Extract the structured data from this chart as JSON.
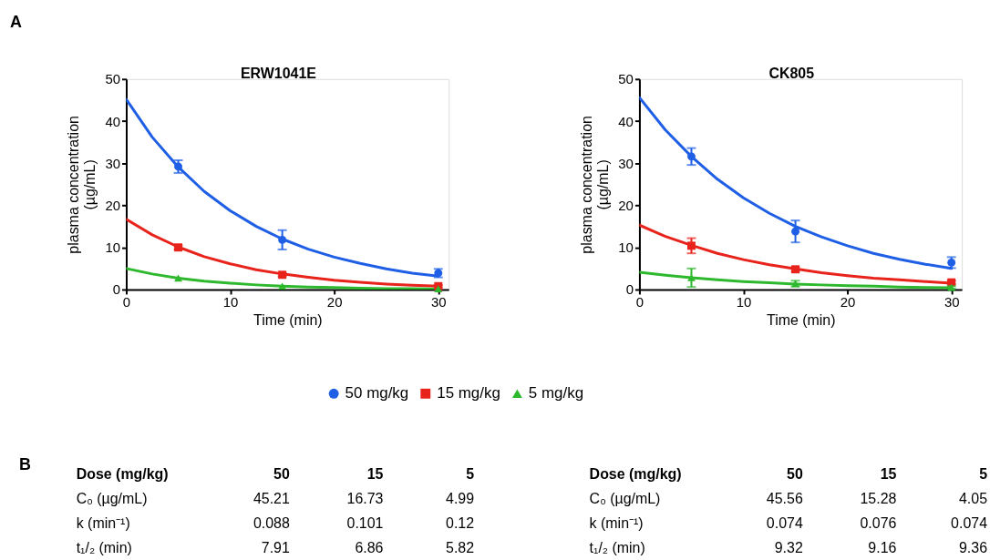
{
  "chart_data": [
    {
      "type": "scatter",
      "title": "ERW1041E",
      "xlabel": "Time (min)",
      "ylabel": "plasma concentration\n(µg/mL)",
      "xlim": [
        0,
        31
      ],
      "xticks": [
        0,
        10,
        20,
        30
      ],
      "ylim": [
        0,
        50
      ],
      "yticks": [
        0,
        10,
        20,
        30,
        40,
        50
      ],
      "grid": false,
      "legend": "bottom",
      "annotations": [
        "A",
        "B",
        "Dose (mg/kg)",
        "50",
        "15",
        "5",
        "C₀ (µg/mL)",
        "45.21",
        "16.73",
        "4.99",
        "k (min⁻¹)",
        "0.088",
        "0.101",
        "0.12",
        "t₁/₂ (min)",
        "7.91",
        "6.86",
        "5.82"
      ],
      "series": [
        {
          "name": "50 mg/kg",
          "marker": "circle",
          "color": "#1f5fe6",
          "x": [
            5,
            15,
            30
          ],
          "values": [
            29.2,
            11.8,
            3.9
          ],
          "errors": [
            1.5,
            2.3,
            1.0
          ]
        },
        {
          "name": "15 mg/kg",
          "marker": "square",
          "color": "#e8231b",
          "x": [
            5,
            15,
            30
          ],
          "values": [
            10.0,
            3.5,
            0.8
          ],
          "errors": [
            0.5,
            0.4,
            0.3
          ]
        },
        {
          "name": "5 mg/kg",
          "marker": "triangle",
          "color": "#2db82d",
          "x": [
            5,
            15,
            30
          ],
          "values": [
            2.7,
            0.8,
            0.2
          ],
          "errors": [
            null,
            null,
            null
          ]
        },
        {
          "type": "line",
          "color": "#1f5fe6",
          "x": [
            0,
            2.5,
            5,
            7.5,
            10,
            12.5,
            15,
            17.5,
            20,
            22.5,
            25,
            27.5,
            30
          ],
          "values": [
            45.2,
            36.2,
            29.1,
            23.3,
            18.7,
            15.0,
            12.0,
            9.6,
            7.7,
            6.2,
            4.9,
            3.9,
            3.2
          ]
        },
        {
          "type": "line",
          "color": "#e8231b",
          "x": [
            0,
            2.5,
            5,
            7.5,
            10,
            12.5,
            15,
            17.5,
            20,
            22.5,
            25,
            27.5,
            30
          ],
          "values": [
            16.7,
            13.0,
            10.1,
            7.8,
            6.1,
            4.7,
            3.7,
            2.9,
            2.2,
            1.7,
            1.3,
            1.0,
            0.8
          ]
        },
        {
          "type": "line",
          "color": "#2db82d",
          "x": [
            0,
            2.5,
            5,
            7.5,
            10,
            12.5,
            15,
            17.5,
            20,
            22.5,
            25,
            27.5,
            30
          ],
          "values": [
            5.0,
            3.7,
            2.7,
            2.0,
            1.5,
            1.1,
            0.8,
            0.6,
            0.5,
            0.3,
            0.2,
            0.2,
            0.1
          ]
        }
      ]
    },
    {
      "type": "scatter",
      "title": "CK805",
      "xlabel": "Time (min)",
      "ylabel": "plasma concentration\n(µg/mL)",
      "xlim": [
        0,
        31
      ],
      "xticks": [
        0,
        10,
        20,
        30
      ],
      "ylim": [
        0,
        50
      ],
      "yticks": [
        0,
        10,
        20,
        30,
        40,
        50
      ],
      "grid": false,
      "legend": "bottom",
      "annotations": [
        "Dose (mg/kg)",
        "50",
        "15",
        "5",
        "C₀ (µg/mL)",
        "45.56",
        "15.28",
        "4.05",
        "k (min⁻¹)",
        "0.074",
        "0.076",
        "0.074",
        "t₁/₂ (min)",
        "9.32",
        "9.16",
        "9.36"
      ],
      "series": [
        {
          "name": "50 mg/kg",
          "marker": "circle",
          "color": "#1f5fe6",
          "x": [
            5,
            15,
            30
          ],
          "values": [
            31.6,
            13.8,
            6.4
          ],
          "errors": [
            2.0,
            2.6,
            1.3
          ]
        },
        {
          "name": "15 mg/kg",
          "marker": "square",
          "color": "#e8231b",
          "x": [
            5,
            15,
            30
          ],
          "values": [
            10.4,
            4.8,
            1.7
          ],
          "errors": [
            1.8,
            0.5,
            0.4
          ]
        },
        {
          "name": "5 mg/kg",
          "marker": "triangle",
          "color": "#2db82d",
          "x": [
            5,
            15,
            30
          ],
          "values": [
            2.8,
            1.4,
            0.5
          ],
          "errors": [
            2.2,
            0.7,
            0.3
          ]
        },
        {
          "type": "line",
          "color": "#1f5fe6",
          "x": [
            0,
            2.5,
            5,
            7.5,
            10,
            12.5,
            15,
            17.5,
            20,
            22.5,
            25,
            27.5,
            30
          ],
          "values": [
            45.6,
            37.9,
            31.6,
            26.2,
            21.8,
            18.1,
            15.0,
            12.5,
            10.4,
            8.6,
            7.2,
            6.0,
            5.0
          ]
        },
        {
          "type": "line",
          "color": "#e8231b",
          "x": [
            0,
            2.5,
            5,
            7.5,
            10,
            12.5,
            15,
            17.5,
            20,
            22.5,
            25,
            27.5,
            30
          ],
          "values": [
            15.3,
            12.6,
            10.5,
            8.6,
            7.1,
            5.9,
            4.9,
            4.0,
            3.3,
            2.7,
            2.3,
            1.9,
            1.5
          ]
        },
        {
          "type": "line",
          "color": "#2db82d",
          "x": [
            0,
            2.5,
            5,
            7.5,
            10,
            12.5,
            15,
            17.5,
            20,
            22.5,
            25,
            27.5,
            30
          ],
          "values": [
            4.1,
            3.4,
            2.8,
            2.3,
            1.9,
            1.6,
            1.3,
            1.1,
            0.9,
            0.8,
            0.6,
            0.5,
            0.4
          ]
        }
      ]
    }
  ]
}
